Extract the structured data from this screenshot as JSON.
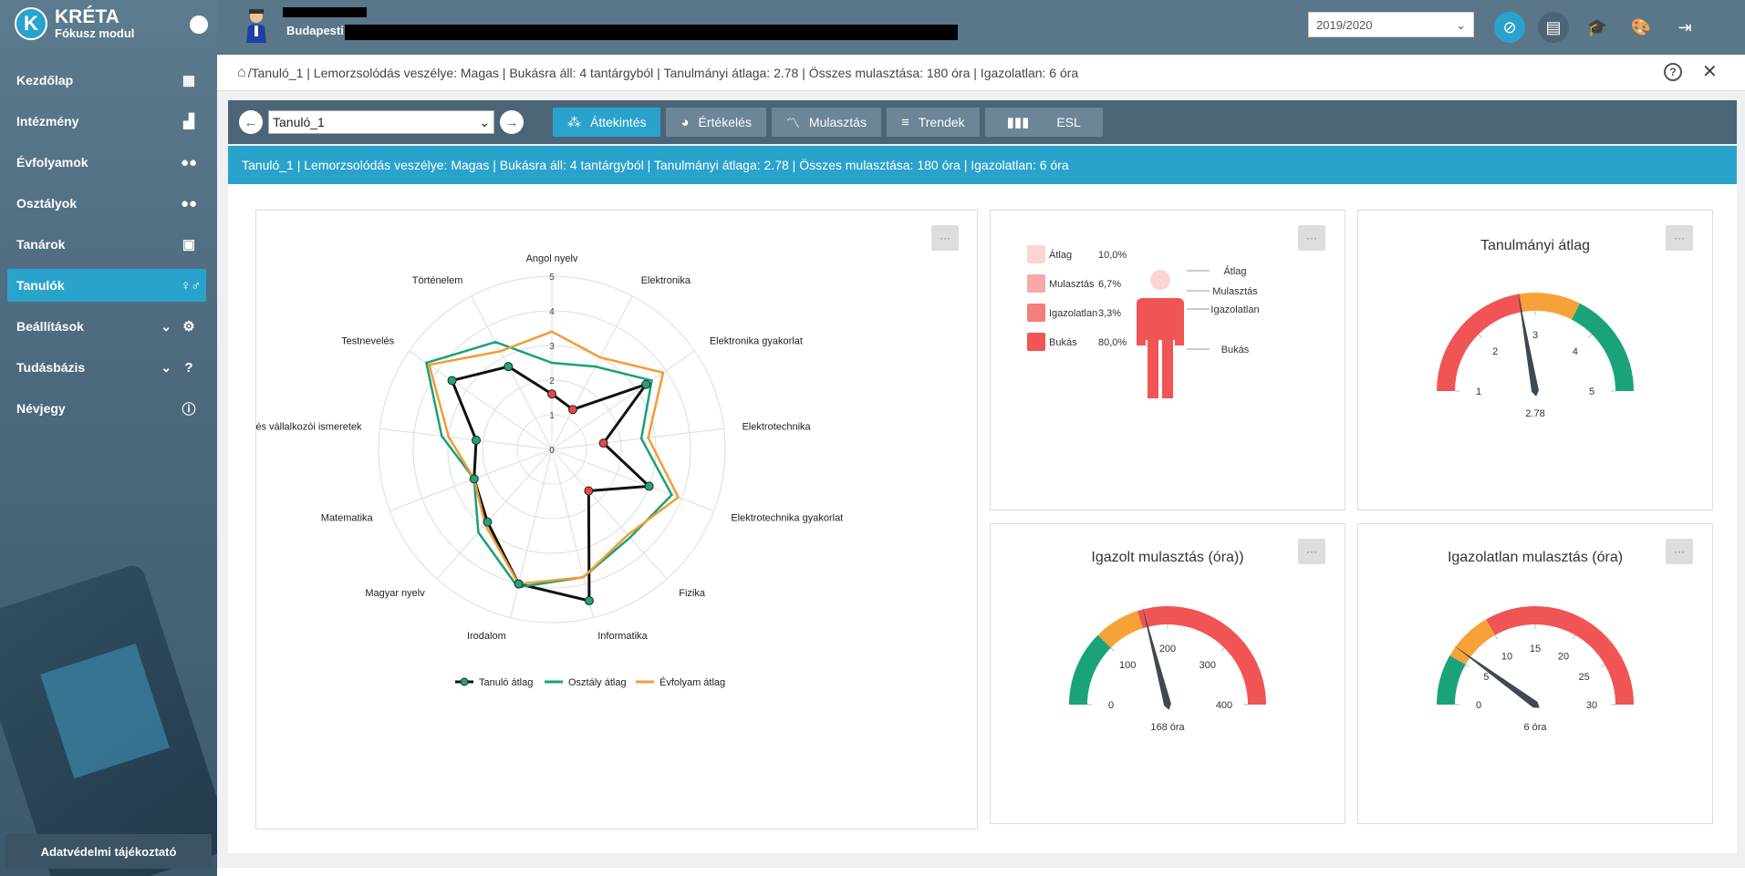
{
  "app": {
    "logo_letter": "K",
    "name": "KRÉTA",
    "subtitle": "Fókusz modul"
  },
  "sidebar": {
    "items": [
      {
        "label": "Kezdőlap",
        "icon": "dashboard-icon"
      },
      {
        "label": "Intézmény",
        "icon": "building-icon"
      },
      {
        "label": "Évfolyamok",
        "icon": "group-icon"
      },
      {
        "label": "Osztályok",
        "icon": "group-icon"
      },
      {
        "label": "Tanárok",
        "icon": "teacher-icon"
      },
      {
        "label": "Tanulók",
        "icon": "students-icon",
        "active": true
      },
      {
        "label": "Beállítások",
        "icon": "gear-icon",
        "expandable": true
      },
      {
        "label": "Tudásbázis",
        "icon": "question-icon",
        "expandable": true
      },
      {
        "label": "Névjegy",
        "icon": "info-icon"
      }
    ],
    "privacy_button": "Adatvédelmi tájékoztató"
  },
  "topbar": {
    "city": "Budapesti",
    "school_year": "2019/2020"
  },
  "breadcrumb": "/Tanuló_1 | Lemorzsolódás veszélye: Magas | Bukásra áll: 4 tantárgyból | Tanulmányi átlaga: 2.78 | Összes mulasztása: 180 óra | Igazolatlan: 6 óra",
  "toolbar": {
    "student_select": "Tanuló_1",
    "tabs": [
      {
        "label": "Áttekintés",
        "active": true
      },
      {
        "label": "Értékelés"
      },
      {
        "label": "Mulasztás"
      },
      {
        "label": "Trendek"
      },
      {
        "label": "ESL"
      }
    ]
  },
  "banner": "Tanuló_1 | Lemorzsolódás veszélye: Magas | Bukásra áll: 4 tantárgyból | Tanulmányi átlaga: 2.78 | Összes mulasztása: 180 óra | Igazolatlan: 6 óra",
  "more_label": "···",
  "chart_data": [
    {
      "type": "radar",
      "categories": [
        "Angol nyelv",
        "Elektronika",
        "Elektronika gyakorlat",
        "Elektrotechnika",
        "Elektrotechnika gyakorlat",
        "Fizika",
        "Informatika",
        "Irodalom",
        "Magyar nyelv",
        "Matematika",
        "i és vállalkozói ismeretek",
        "Testnevelés",
        "Történelem"
      ],
      "scale": [
        0,
        1,
        2,
        3,
        4,
        5
      ],
      "series": [
        {
          "name": "Tanuló átlag",
          "color": "#111111",
          "values": [
            1.6,
            1.3,
            3.3,
            1.5,
            3.0,
            1.6,
            4.5,
            4.0,
            2.8,
            2.4,
            2.2,
            3.5,
            2.7
          ]
        },
        {
          "name": "Osztály átlag",
          "color": "#1aa07b",
          "values": [
            2.5,
            2.7,
            3.5,
            2.6,
            3.7,
            3.4,
            3.8,
            4.1,
            3.2,
            2.4,
            3.2,
            4.4,
            3.5
          ]
        },
        {
          "name": "Évfolyam átlag",
          "color": "#f39c32",
          "values": [
            3.4,
            3.0,
            3.9,
            2.8,
            3.9,
            3.3,
            3.8,
            4.0,
            2.9,
            2.4,
            3.0,
            4.3,
            3.2
          ]
        }
      ]
    },
    {
      "type": "pictogram",
      "items": [
        {
          "label": "Átlag",
          "value": "10,0%",
          "color": "#fcd4d4"
        },
        {
          "label": "Mulasztás",
          "value": "6,7%",
          "color": "#f8a8a8"
        },
        {
          "label": "Igazolatlan",
          "value": "3,3%",
          "color": "#f47c7c"
        },
        {
          "label": "Bukás",
          "value": "80,0%",
          "color": "#f05454"
        }
      ]
    },
    {
      "type": "gauge",
      "title": "Tanulmányi átlag",
      "min": 1,
      "max": 5,
      "ticks": [
        "1",
        "2",
        "3",
        "4",
        "5"
      ],
      "value": 2.78,
      "value_label": "2.78",
      "bands": [
        {
          "from": 1,
          "to": 2.8,
          "color": "#f05454"
        },
        {
          "from": 2.8,
          "to": 3.6,
          "color": "#f7a239"
        },
        {
          "from": 3.6,
          "to": 5,
          "color": "#1aa37b"
        }
      ]
    },
    {
      "type": "gauge",
      "title": "Igazolt mulasztás (óra))",
      "min": 0,
      "max": 400,
      "ticks": [
        "0",
        "100",
        "200",
        "300",
        "400"
      ],
      "value": 168,
      "value_label": "168 óra",
      "bands": [
        {
          "from": 0,
          "to": 100,
          "color": "#1aa37b"
        },
        {
          "from": 100,
          "to": 160,
          "color": "#f7a239"
        },
        {
          "from": 160,
          "to": 400,
          "color": "#f05454"
        }
      ]
    },
    {
      "type": "gauge",
      "title": "Igazolatlan mulasztás (óra)",
      "min": 0,
      "max": 30,
      "ticks": [
        "0",
        "5",
        "10",
        "15",
        "20",
        "25",
        "30"
      ],
      "value": 6,
      "value_label": "6 óra",
      "bands": [
        {
          "from": 0,
          "to": 5,
          "color": "#1aa37b"
        },
        {
          "from": 5,
          "to": 10,
          "color": "#f7a239"
        },
        {
          "from": 10,
          "to": 30,
          "color": "#f05454"
        }
      ]
    }
  ]
}
